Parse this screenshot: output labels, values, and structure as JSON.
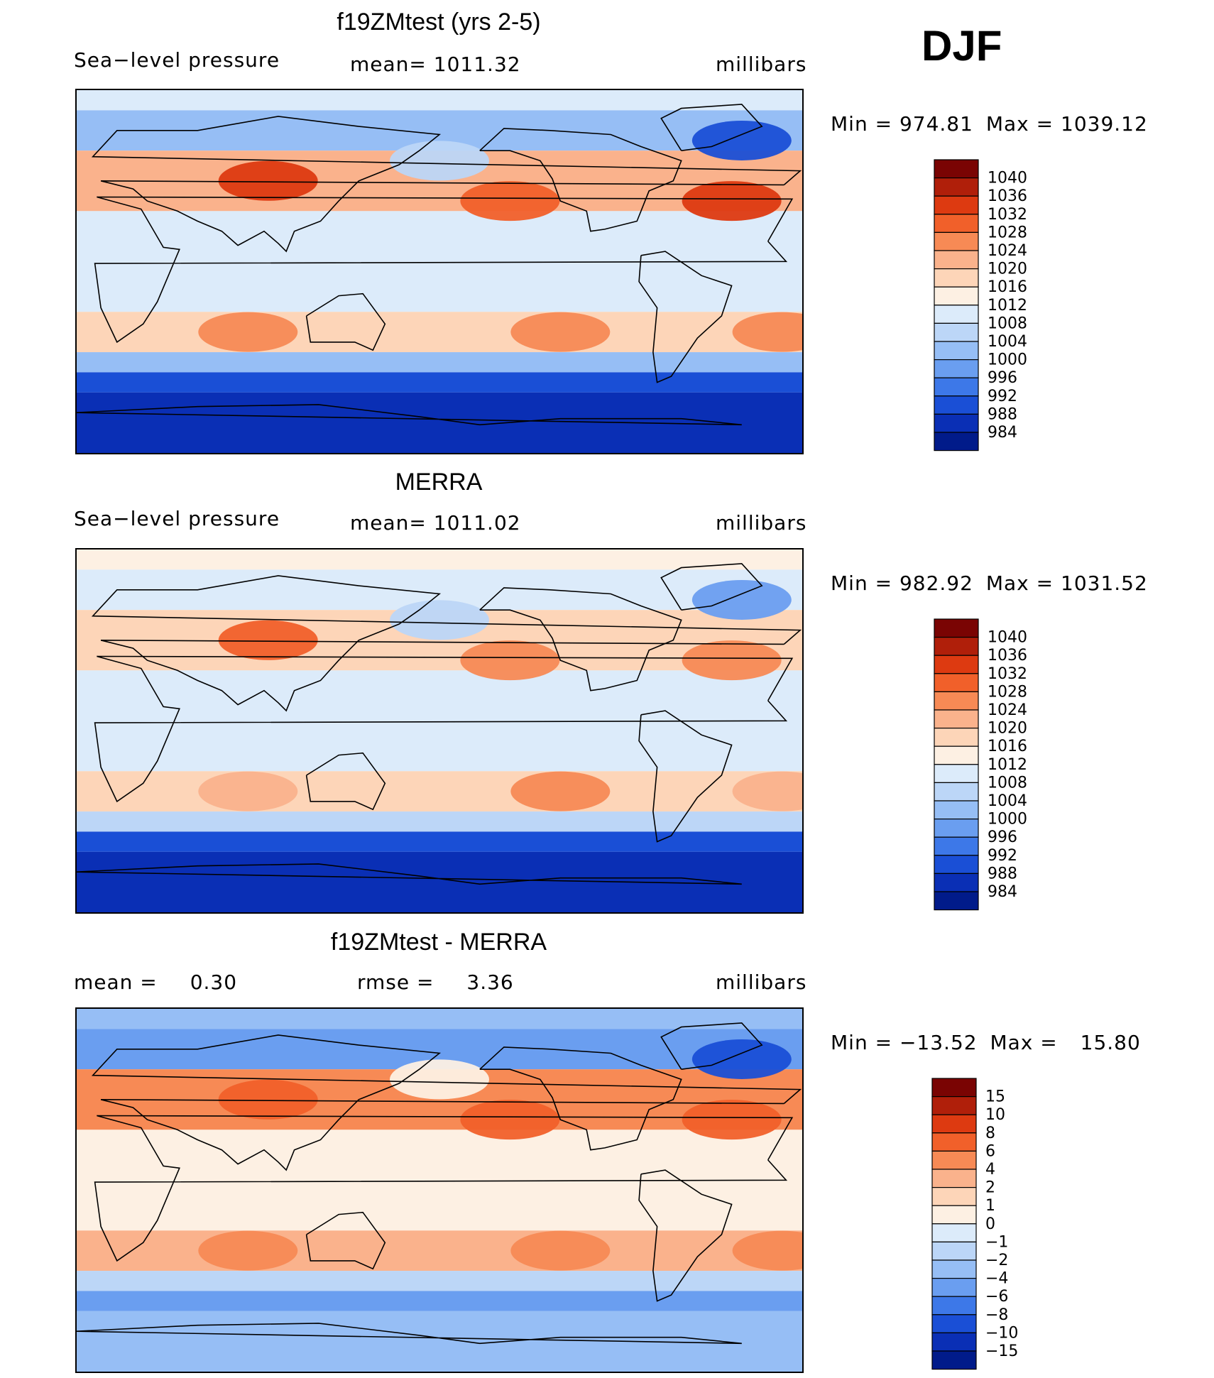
{
  "figure": {
    "season": "DJF"
  },
  "chart_data": [
    {
      "type": "heatmap",
      "title": "f19ZMtest (yrs 2-5)",
      "variable": "Sea−level pressure",
      "mean_label": "mean=",
      "mean_value": "1011.32",
      "units": "millibars",
      "min_label": "Min =",
      "min_value": "974.81",
      "max_label": "Max =",
      "max_value": "1039.12",
      "min": 974.81,
      "max": 1039.12,
      "colorbar": {
        "labels": [
          "1040",
          "1036",
          "1032",
          "1028",
          "1024",
          "1020",
          "1016",
          "1012",
          "1008",
          "1004",
          "1000",
          "996",
          "992",
          "988",
          "984"
        ],
        "colors": [
          "#7a0403",
          "#b01f0a",
          "#dd3a11",
          "#f1602a",
          "#f78a55",
          "#fab28c",
          "#fdd5b8",
          "#fdf0e3",
          "#dcebfa",
          "#bcd6f7",
          "#96bef5",
          "#6a9ef0",
          "#3d78e8",
          "#1a4fd6",
          "#0a2fb5",
          "#011b8a"
        ]
      },
      "field_zones": [
        {
          "lat": [
            90,
            80
          ],
          "value": 1008
        },
        {
          "lat": [
            80,
            60
          ],
          "value": 1002
        },
        {
          "lat": [
            60,
            30
          ],
          "value": 1022
        },
        {
          "lat": [
            30,
            -20
          ],
          "value": 1010
        },
        {
          "lat": [
            -20,
            -40
          ],
          "value": 1018
        },
        {
          "lat": [
            -40,
            -50
          ],
          "value": 1003
        },
        {
          "lat": [
            -50,
            -60
          ],
          "value": 990
        },
        {
          "lat": [
            -60,
            -90
          ],
          "value": 984
        }
      ]
    },
    {
      "type": "heatmap",
      "title": "MERRA",
      "variable": "Sea−level pressure",
      "mean_label": "mean=",
      "mean_value": "1011.02",
      "units": "millibars",
      "min_label": "Min =",
      "min_value": "982.92",
      "max_label": "Max =",
      "max_value": "1031.52",
      "min": 982.92,
      "max": 1031.52,
      "colorbar": {
        "labels": [
          "1040",
          "1036",
          "1032",
          "1028",
          "1024",
          "1020",
          "1016",
          "1012",
          "1008",
          "1004",
          "1000",
          "996",
          "992",
          "988",
          "984"
        ],
        "colors": [
          "#7a0403",
          "#b01f0a",
          "#dd3a11",
          "#f1602a",
          "#f78a55",
          "#fab28c",
          "#fdd5b8",
          "#fdf0e3",
          "#dcebfa",
          "#bcd6f7",
          "#96bef5",
          "#6a9ef0",
          "#3d78e8",
          "#1a4fd6",
          "#0a2fb5",
          "#011b8a"
        ]
      },
      "field_zones": [
        {
          "lat": [
            90,
            80
          ],
          "value": 1014
        },
        {
          "lat": [
            80,
            60
          ],
          "value": 1010
        },
        {
          "lat": [
            60,
            30
          ],
          "value": 1018
        },
        {
          "lat": [
            30,
            -20
          ],
          "value": 1010
        },
        {
          "lat": [
            -20,
            -40
          ],
          "value": 1016
        },
        {
          "lat": [
            -40,
            -50
          ],
          "value": 1004
        },
        {
          "lat": [
            -50,
            -60
          ],
          "value": 990
        },
        {
          "lat": [
            -60,
            -90
          ],
          "value": 986
        }
      ]
    },
    {
      "type": "heatmap",
      "title": "f19ZMtest - MERRA",
      "variable": "",
      "mean_label": "mean =",
      "mean_value": "0.30",
      "rmse_label": "rmse =",
      "rmse_value": "3.36",
      "units": "millibars",
      "min_label": "Min =",
      "min_value": "−13.52",
      "max_label": "Max =",
      "max_value": "15.80",
      "min": -13.52,
      "max": 15.8,
      "colorbar": {
        "labels": [
          "15",
          "10",
          "8",
          "6",
          "4",
          "2",
          "1",
          "0",
          "−1",
          "−2",
          "−4",
          "−6",
          "−8",
          "−10",
          "−15"
        ],
        "colors": [
          "#7a0403",
          "#b01f0a",
          "#dd3a11",
          "#f1602a",
          "#f78a55",
          "#fab28c",
          "#fdd5b8",
          "#fdf0e3",
          "#dcebfa",
          "#bcd6f7",
          "#96bef5",
          "#6a9ef0",
          "#3d78e8",
          "#1a4fd6",
          "#0a2fb5",
          "#011b8a"
        ]
      },
      "field_zones": [
        {
          "lat": [
            90,
            80
          ],
          "value": -3
        },
        {
          "lat": [
            80,
            60
          ],
          "value": -5
        },
        {
          "lat": [
            60,
            30
          ],
          "value": 4
        },
        {
          "lat": [
            30,
            -20
          ],
          "value": 0.5
        },
        {
          "lat": [
            -20,
            -40
          ],
          "value": 2
        },
        {
          "lat": [
            -40,
            -50
          ],
          "value": -2
        },
        {
          "lat": [
            -50,
            -60
          ],
          "value": -6
        },
        {
          "lat": [
            -60,
            -90
          ],
          "value": -4
        }
      ]
    }
  ]
}
